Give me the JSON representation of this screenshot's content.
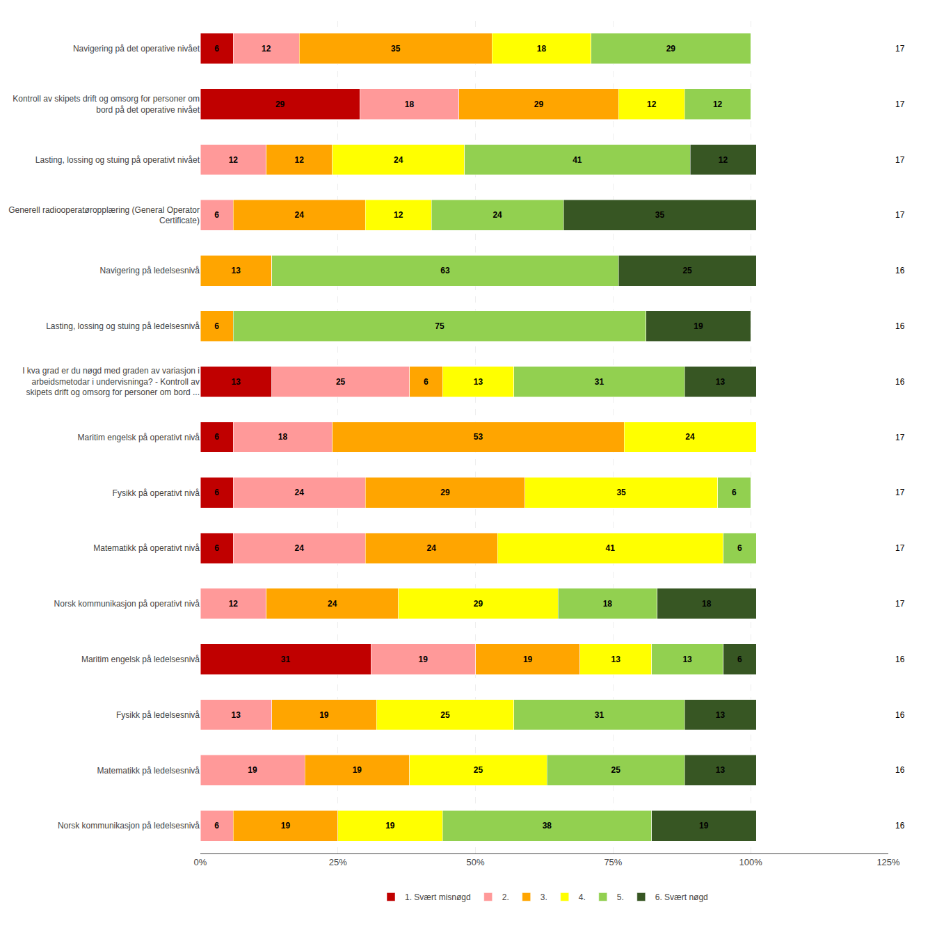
{
  "chart_data": {
    "type": "bar",
    "orientation": "horizontal",
    "stacked": true,
    "data_labels": true,
    "categories": [
      "Navigering på det operative nivået",
      "Kontroll av skipets drift og omsorg for personer om\nbord på det operative nivået",
      "Lasting, lossing og stuing på operativt nivået",
      "Generell radiooperatøropplæring (General Operator\nCertificate)",
      "Navigering på ledelsesnivå",
      "Lasting, lossing og stuing på ledelsesnivå",
      "I kva grad er du nøgd med graden av variasjon i\narbeidsmetodar i undervisninga? - Kontroll av\nskipets drift og omsorg for personer om bord ...",
      "Maritim engelsk på operativt nivå",
      "Fysikk på operativt nivå",
      "Matematikk på operativt nivå",
      "Norsk kommunikasjon på operativt nivå",
      "Maritim engelsk på ledelsesnivå",
      "Fysikk på ledelsesnivå",
      "Matematikk på ledelsesnivå",
      "Norsk kommunikasjon på ledelsesnivå"
    ],
    "series": [
      {
        "name": "1. Svært misnøgd",
        "color": "#c00000",
        "values": [
          6,
          29,
          0,
          0,
          0,
          0,
          13,
          6,
          6,
          6,
          0,
          31,
          0,
          0,
          0
        ]
      },
      {
        "name": "2.",
        "color": "#ff9999",
        "values": [
          12,
          18,
          12,
          6,
          0,
          0,
          25,
          18,
          24,
          24,
          12,
          19,
          13,
          19,
          6
        ]
      },
      {
        "name": "3.",
        "color": "#ffa500",
        "values": [
          35,
          29,
          12,
          24,
          13,
          6,
          6,
          53,
          29,
          24,
          24,
          19,
          19,
          19,
          19
        ]
      },
      {
        "name": "4.",
        "color": "#ffff00",
        "values": [
          18,
          12,
          24,
          12,
          0,
          0,
          13,
          24,
          35,
          41,
          29,
          13,
          25,
          25,
          19
        ]
      },
      {
        "name": "5.",
        "color": "#92d050",
        "values": [
          29,
          12,
          41,
          24,
          63,
          75,
          31,
          0,
          6,
          6,
          18,
          13,
          31,
          25,
          38
        ]
      },
      {
        "name": "6. Svært nøgd",
        "color": "#375623",
        "values": [
          0,
          0,
          12,
          35,
          25,
          19,
          13,
          0,
          0,
          0,
          18,
          6,
          13,
          13,
          19
        ]
      }
    ],
    "n_values": [
      17,
      17,
      17,
      17,
      16,
      16,
      16,
      17,
      17,
      17,
      17,
      16,
      16,
      16,
      16
    ],
    "xlim": [
      0,
      125
    ],
    "xticks": [
      {
        "value": 0,
        "label": "0%"
      },
      {
        "value": 25,
        "label": "25%"
      },
      {
        "value": 50,
        "label": "50%"
      },
      {
        "value": 75,
        "label": "75%"
      },
      {
        "value": 100,
        "label": "100%"
      },
      {
        "value": 125,
        "label": "125%"
      }
    ],
    "grid": true,
    "legend": "bottom"
  }
}
